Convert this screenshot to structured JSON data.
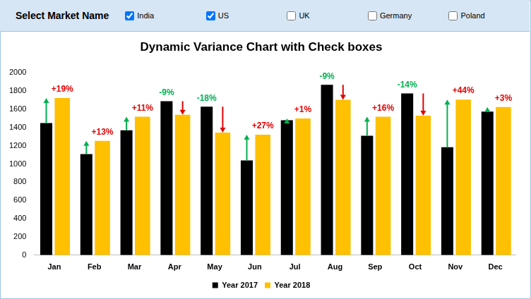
{
  "controls": {
    "title": "Select Market Name",
    "markets": [
      {
        "name": "India",
        "checked": true
      },
      {
        "name": "US",
        "checked": true
      },
      {
        "name": "UK",
        "checked": false
      },
      {
        "name": "Germany",
        "checked": false
      },
      {
        "name": "Poland",
        "checked": false
      }
    ]
  },
  "chart_data": {
    "type": "bar",
    "title": "Dynamic Variance Chart with Check boxes",
    "categories": [
      "Jan",
      "Feb",
      "Mar",
      "Apr",
      "May",
      "Jun",
      "Jul",
      "Aug",
      "Sep",
      "Oct",
      "Nov",
      "Dec"
    ],
    "series": [
      {
        "name": "Year 2017",
        "color": "#000000",
        "values": [
          1450,
          1110,
          1370,
          1690,
          1630,
          1040,
          1480,
          1870,
          1310,
          1775,
          1185,
          1575
        ]
      },
      {
        "name": "Year 2018",
        "color": "#ffc000",
        "values": [
          1725,
          1255,
          1520,
          1540,
          1345,
          1322,
          1500,
          1705,
          1520,
          1530,
          1708,
          1625
        ]
      }
    ],
    "annotations": [
      "+19%",
      "+13%",
      "+11%",
      "-9%",
      "-18%",
      "+27%",
      "+1%",
      "-9%",
      "+16%",
      "-14%",
      "+44%",
      "+3%"
    ],
    "ylim": [
      0,
      2000
    ],
    "yticks": [
      0,
      200,
      400,
      600,
      800,
      1000,
      1200,
      1400,
      1600,
      1800,
      2000
    ],
    "grid": false,
    "legend": "bottom"
  }
}
